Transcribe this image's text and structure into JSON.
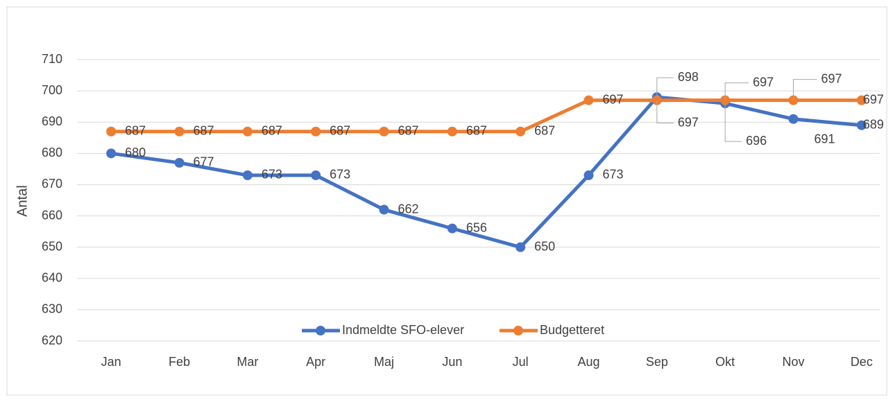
{
  "chart_data": {
    "type": "line",
    "y_label": "Antal",
    "categories": [
      "Jan",
      "Feb",
      "Mar",
      "Apr",
      "Maj",
      "Jun",
      "Jul",
      "Aug",
      "Sep",
      "Okt",
      "Nov",
      "Dec"
    ],
    "series": [
      {
        "name": "Indmeldte SFO-elever",
        "color": "#4472c4",
        "values": [
          680,
          677,
          673,
          673,
          662,
          656,
          650,
          673,
          698,
          696,
          691,
          689
        ]
      },
      {
        "name": "Budgetteret",
        "color": "#ed7d31",
        "values": [
          687,
          687,
          687,
          687,
          687,
          687,
          687,
          697,
          697,
          697,
          697,
          697
        ]
      }
    ],
    "ylim": [
      620,
      710
    ],
    "yticks": [
      620,
      630,
      640,
      650,
      660,
      670,
      680,
      690,
      700,
      710
    ],
    "grid": true,
    "legend": "bottom"
  }
}
